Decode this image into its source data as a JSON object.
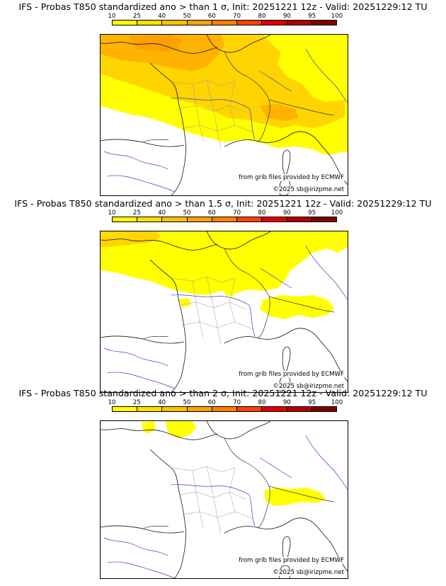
{
  "legend": {
    "ticks": [
      "10",
      "25",
      "40",
      "50",
      "60",
      "70",
      "80",
      "90",
      "95",
      "100"
    ],
    "colors": [
      "#ffff00",
      "#ffdf00",
      "#ffc000",
      "#ffa000",
      "#ff8000",
      "#ff4000",
      "#e00000",
      "#b00000",
      "#800000"
    ]
  },
  "panels": [
    {
      "title": "IFS - Probas T850  standardized ano > than 1 σ, Init: 20251221 12z - Valid: 20251229:12 TU",
      "source": "from grib files provided by ECMWF",
      "copyright": "©2025 sb@irizpme.net"
    },
    {
      "title": "IFS - Probas T850  standardized ano > than 1.5 σ, Init: 20251221 12z - Valid: 20251229:12 TU",
      "source": "from grib files provided by ECMWF",
      "copyright": "©2025 sb@irizpme.net"
    },
    {
      "title": "IFS - Probas T850  standardized ano > than 2 σ, Init: 20251221 12z - Valid: 20251229:12 TU",
      "source": "from grib files provided by ECMWF",
      "copyright": "©2025 sb@irizpme.net"
    }
  ]
}
